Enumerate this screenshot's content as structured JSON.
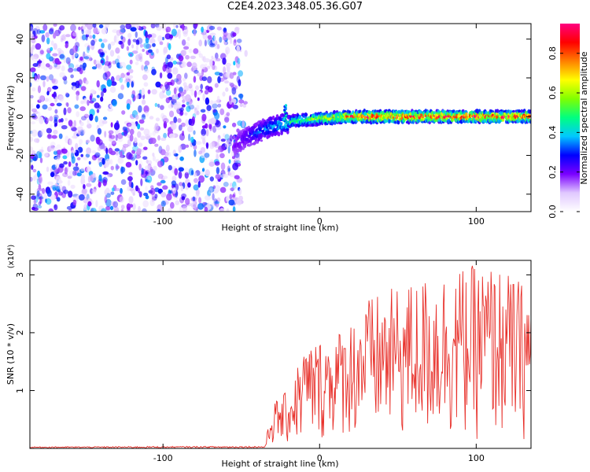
{
  "title": "C2E4.2023.348.05.36.G07",
  "chart_data": [
    {
      "type": "heatmap",
      "xlabel": "Height of straight line (km)",
      "ylabel": "Frequency (Hz)",
      "xlim": [
        -185,
        135
      ],
      "ylim": [
        -49,
        48
      ],
      "x_ticks": [
        -100,
        0,
        100
      ],
      "y_ticks": [
        -40,
        -20,
        0,
        20,
        40
      ],
      "grid": false,
      "colorbar": {
        "label": "Normalized spectral amplitude",
        "range": [
          0,
          0.95
        ],
        "ticks": [
          0.0,
          0.2,
          0.4,
          0.6,
          0.8
        ],
        "colormap": [
          "#ffffff",
          "#e0c8ff",
          "#7a00ff",
          "#0000ff",
          "#00c8ff",
          "#00ff80",
          "#80ff00",
          "#ffff00",
          "#ff8000",
          "#ff0000",
          "#ff0080"
        ]
      },
      "features": {
        "noise_region_x": [
          -185,
          -50
        ],
        "trace": [
          {
            "x": -55,
            "freq": -15
          },
          {
            "x": -45,
            "freq": -10
          },
          {
            "x": -30,
            "freq": -5
          },
          {
            "x": -15,
            "freq": -2
          },
          {
            "x": 0,
            "freq": -1
          },
          {
            "x": 20,
            "freq": 0
          },
          {
            "x": 135,
            "freq": 0
          }
        ],
        "spike": {
          "x": -22,
          "freq_top": 6
        }
      }
    },
    {
      "type": "line",
      "xlabel": "Height of straight line (km)",
      "ylabel": "SNR (10 * v/v)",
      "y_multiplier": "(x10⁴)",
      "xlim": [
        -185,
        135
      ],
      "ylim": [
        0,
        3.25
      ],
      "x_ticks": [
        -100,
        0,
        100
      ],
      "y_ticks": [
        1,
        2,
        3
      ],
      "grid": false,
      "series": [
        {
          "color": "#e8302a",
          "envelope": [
            {
              "x": -185,
              "min": 0.01,
              "max": 0.03
            },
            {
              "x": -35,
              "min": 0.01,
              "max": 0.04
            },
            {
              "x": -30,
              "min": 0.05,
              "max": 0.8
            },
            {
              "x": -20,
              "min": 0.05,
              "max": 1.0
            },
            {
              "x": -10,
              "min": 0.05,
              "max": 1.8
            },
            {
              "x": 0,
              "min": 0.1,
              "max": 1.9
            },
            {
              "x": 15,
              "min": 0.2,
              "max": 2.1
            },
            {
              "x": 30,
              "min": 0.1,
              "max": 2.6
            },
            {
              "x": 50,
              "min": 0.1,
              "max": 2.8
            },
            {
              "x": 80,
              "min": 0.1,
              "max": 3.1
            },
            {
              "x": 110,
              "min": 0.1,
              "max": 3.2
            },
            {
              "x": 135,
              "min": 0.1,
              "max": 2.8
            }
          ]
        }
      ]
    }
  ]
}
